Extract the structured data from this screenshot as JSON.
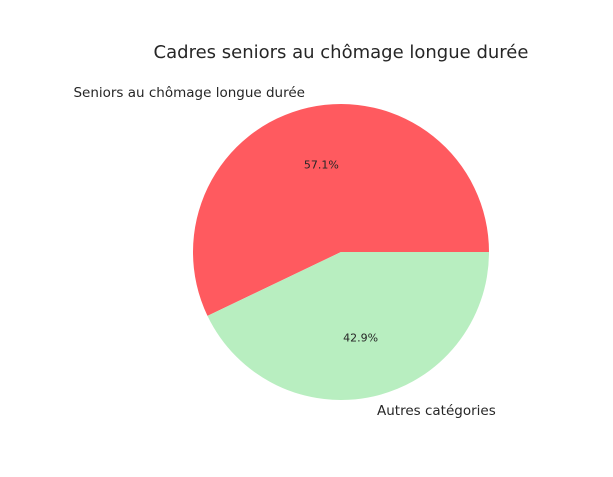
{
  "chart_data": {
    "type": "pie",
    "title": "Cadres seniors au chômage longue durée",
    "categories": [
      "Seniors au chômage longue durée",
      "Autres catégories"
    ],
    "values": [
      57.1,
      42.9
    ],
    "value_labels": [
      "57.1%",
      "42.9%"
    ],
    "colors": [
      "#ff5a5f",
      "#b8eec0"
    ]
  }
}
